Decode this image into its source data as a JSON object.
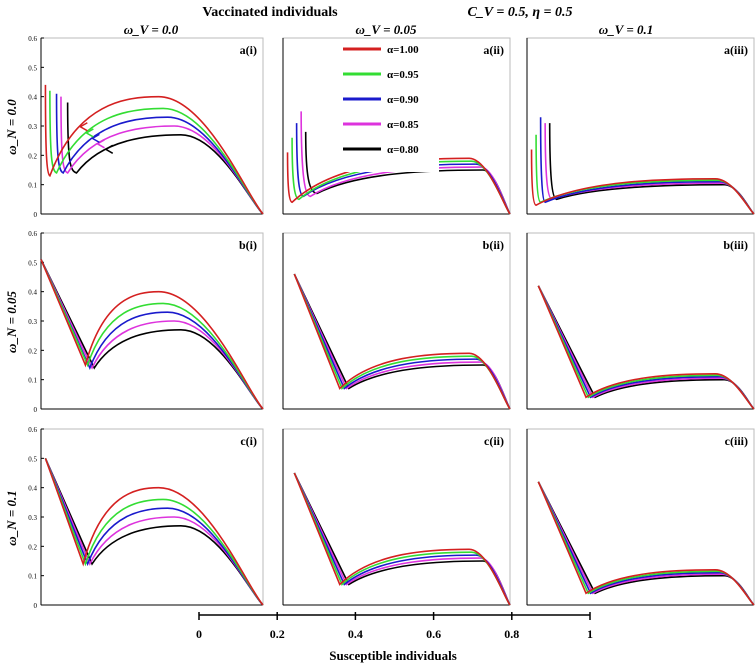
{
  "header": {
    "left": "Vaccinated individuals",
    "right": "C_V = 0.5, η = 0.5"
  },
  "col_titles": [
    "ω_V = 0.0",
    "ω_V = 0.05",
    "ω_V = 0.1"
  ],
  "row_titles": [
    "ω_N = 0.0",
    "ω_N = 0.05",
    "ω_N = 0.1"
  ],
  "x_axis": {
    "label": "Susceptible individuals",
    "ticks": [
      "0",
      "0.2",
      "0.4",
      "0.6",
      "0.8",
      "1"
    ]
  },
  "legend": [
    "α=1.00",
    "α=0.95",
    "α=0.90",
    "α=0.85",
    "α=0.80"
  ],
  "colors": [
    "#d42020",
    "#33dd33",
    "#1a1acc",
    "#dd33dd",
    "#000000"
  ],
  "chart_data": {
    "type": "line",
    "title": "Vaccinated individuals, C_V = 0.5, η = 0.5",
    "xlabel": "Susceptible individuals",
    "ylabel": "ω_N",
    "xlim": [
      0,
      1
    ],
    "ylim": [
      0,
      0.6
    ],
    "y_ticks": [
      "0",
      "0.1",
      "0.2",
      "0.3",
      "0.4",
      "0.5",
      "0.6"
    ],
    "series_names": [
      "α=1.00",
      "α=0.95",
      "α=0.90",
      "α=0.85",
      "α=0.80"
    ],
    "panels": [
      {
        "id": "a(i)",
        "kind": "spike",
        "x_start": [
          0.02,
          0.04,
          0.07,
          0.09,
          0.12
        ],
        "y_start": [
          0.44,
          0.42,
          0.41,
          0.4,
          0.38
        ],
        "x_min": [
          0.04,
          0.07,
          0.1,
          0.12,
          0.16
        ],
        "y_min": [
          0.13,
          0.14,
          0.14,
          0.14,
          0.14
        ],
        "peak_x": [
          0.53,
          0.55,
          0.57,
          0.6,
          0.63
        ],
        "peak_y": [
          0.4,
          0.36,
          0.33,
          0.3,
          0.27
        ],
        "x_end": 1.0,
        "arrows": true
      },
      {
        "id": "a(ii)",
        "kind": "spike",
        "x_start": [
          0.02,
          0.04,
          0.06,
          0.08,
          0.1
        ],
        "y_start": [
          0.21,
          0.26,
          0.31,
          0.35,
          0.28
        ],
        "x_min": [
          0.04,
          0.07,
          0.09,
          0.12,
          0.15
        ],
        "y_min": [
          0.04,
          0.05,
          0.06,
          0.06,
          0.07
        ],
        "peak_x": [
          0.82,
          0.83,
          0.85,
          0.87,
          0.88
        ],
        "peak_y": [
          0.19,
          0.18,
          0.17,
          0.16,
          0.15
        ],
        "x_end": 1.0,
        "arrows": false
      },
      {
        "id": "a(iii)",
        "kind": "spike",
        "x_start": [
          0.02,
          0.04,
          0.06,
          0.08,
          0.1
        ],
        "y_start": [
          0.22,
          0.27,
          0.33,
          0.31,
          0.31
        ],
        "x_min": [
          0.04,
          0.06,
          0.08,
          0.11,
          0.13
        ],
        "y_min": [
          0.03,
          0.04,
          0.04,
          0.05,
          0.05
        ],
        "peak_x": [
          0.83,
          0.84,
          0.85,
          0.86,
          0.87
        ],
        "peak_y": [
          0.12,
          0.115,
          0.11,
          0.105,
          0.1
        ],
        "x_end": 1.0,
        "arrows": false
      },
      {
        "id": "b(i)",
        "kind": "line",
        "x_start": [
          0.0,
          0.0,
          0.0,
          0.0,
          0.0
        ],
        "y_start": [
          0.51,
          0.51,
          0.51,
          0.51,
          0.51
        ],
        "x_min": [
          0.2,
          0.21,
          0.22,
          0.23,
          0.24
        ],
        "y_min": [
          0.15,
          0.15,
          0.14,
          0.14,
          0.14
        ],
        "peak_x": [
          0.53,
          0.55,
          0.57,
          0.6,
          0.63
        ],
        "peak_y": [
          0.4,
          0.36,
          0.33,
          0.3,
          0.27
        ],
        "x_end": 1.0,
        "arrows": false
      },
      {
        "id": "b(ii)",
        "kind": "line",
        "x_start": [
          0.05,
          0.05,
          0.05,
          0.05,
          0.05
        ],
        "y_start": [
          0.46,
          0.46,
          0.46,
          0.46,
          0.46
        ],
        "x_min": [
          0.25,
          0.26,
          0.27,
          0.28,
          0.29
        ],
        "y_min": [
          0.07,
          0.07,
          0.07,
          0.07,
          0.07
        ],
        "peak_x": [
          0.82,
          0.83,
          0.85,
          0.87,
          0.88
        ],
        "peak_y": [
          0.19,
          0.18,
          0.17,
          0.16,
          0.15
        ],
        "x_end": 1.0,
        "arrows": false
      },
      {
        "id": "b(iii)",
        "kind": "line",
        "x_start": [
          0.05,
          0.05,
          0.05,
          0.05,
          0.05
        ],
        "y_start": [
          0.42,
          0.42,
          0.42,
          0.42,
          0.42
        ],
        "x_min": [
          0.26,
          0.27,
          0.28,
          0.29,
          0.3
        ],
        "y_min": [
          0.04,
          0.04,
          0.04,
          0.04,
          0.04
        ],
        "peak_x": [
          0.83,
          0.84,
          0.85,
          0.86,
          0.87
        ],
        "peak_y": [
          0.12,
          0.115,
          0.11,
          0.105,
          0.1
        ],
        "x_end": 1.0,
        "arrows": false
      },
      {
        "id": "c(i)",
        "kind": "line",
        "x_start": [
          0.02,
          0.02,
          0.02,
          0.02,
          0.02
        ],
        "y_start": [
          0.5,
          0.5,
          0.5,
          0.5,
          0.5
        ],
        "x_min": [
          0.19,
          0.2,
          0.21,
          0.22,
          0.23
        ],
        "y_min": [
          0.14,
          0.14,
          0.14,
          0.14,
          0.14
        ],
        "peak_x": [
          0.53,
          0.55,
          0.57,
          0.6,
          0.63
        ],
        "peak_y": [
          0.4,
          0.36,
          0.33,
          0.3,
          0.27
        ],
        "x_end": 1.0,
        "arrows": false
      },
      {
        "id": "c(ii)",
        "kind": "line",
        "x_start": [
          0.05,
          0.05,
          0.05,
          0.05,
          0.05
        ],
        "y_start": [
          0.45,
          0.45,
          0.45,
          0.45,
          0.45
        ],
        "x_min": [
          0.25,
          0.26,
          0.27,
          0.28,
          0.29
        ],
        "y_min": [
          0.07,
          0.07,
          0.07,
          0.07,
          0.07
        ],
        "peak_x": [
          0.82,
          0.83,
          0.85,
          0.87,
          0.88
        ],
        "peak_y": [
          0.19,
          0.18,
          0.17,
          0.16,
          0.15
        ],
        "x_end": 1.0,
        "arrows": false
      },
      {
        "id": "c(iii)",
        "kind": "line",
        "x_start": [
          0.05,
          0.05,
          0.05,
          0.05,
          0.05
        ],
        "y_start": [
          0.42,
          0.42,
          0.42,
          0.42,
          0.42
        ],
        "x_min": [
          0.26,
          0.27,
          0.28,
          0.29,
          0.3
        ],
        "y_min": [
          0.04,
          0.04,
          0.04,
          0.04,
          0.04
        ],
        "peak_x": [
          0.83,
          0.84,
          0.85,
          0.86,
          0.87
        ],
        "peak_y": [
          0.12,
          0.115,
          0.11,
          0.105,
          0.1
        ],
        "x_end": 1.0,
        "arrows": false
      }
    ]
  }
}
